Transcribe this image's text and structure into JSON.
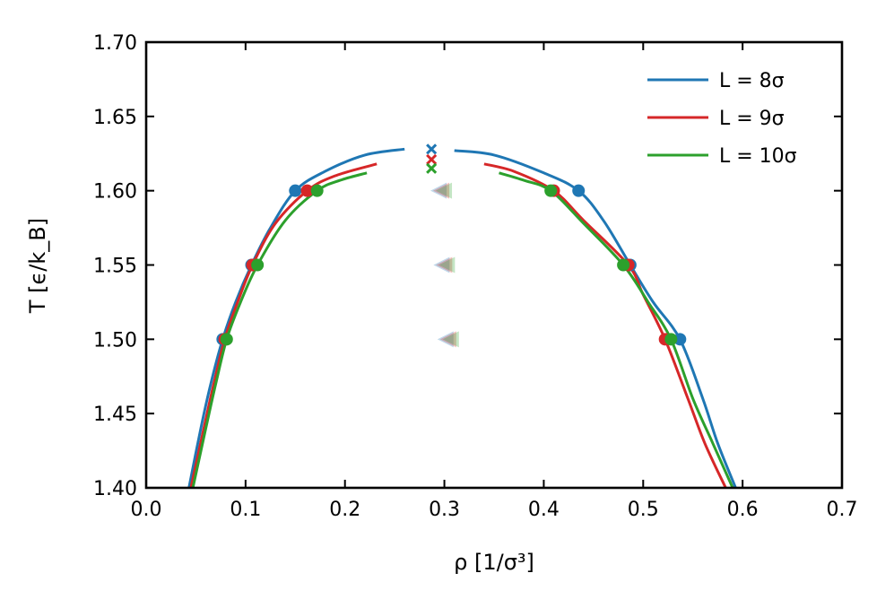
{
  "chart_data": {
    "type": "line",
    "title": "",
    "xlabel": "ρ [1/σ³]",
    "ylabel": "T [ϵ/k_B]",
    "xlim": [
      0.0,
      0.7
    ],
    "ylim": [
      1.4,
      1.7
    ],
    "xticks": [
      "0.0",
      "0.1",
      "0.2",
      "0.3",
      "0.4",
      "0.5",
      "0.6",
      "0.7"
    ],
    "yticks": [
      "1.40",
      "1.45",
      "1.50",
      "1.55",
      "1.60",
      "1.65",
      "1.70"
    ],
    "grid": false,
    "legend_position": "top-right",
    "series": [
      {
        "name": "L = 8σ",
        "color": "#1f77b4",
        "curve_left": [
          [
            0.043,
            1.4
          ],
          [
            0.055,
            1.44
          ],
          [
            0.065,
            1.47
          ],
          [
            0.077,
            1.5
          ],
          [
            0.09,
            1.525
          ],
          [
            0.106,
            1.55
          ],
          [
            0.125,
            1.575
          ],
          [
            0.15,
            1.6
          ],
          [
            0.18,
            1.613
          ],
          [
            0.22,
            1.624
          ],
          [
            0.26,
            1.628
          ]
        ],
        "curve_right": [
          [
            0.31,
            1.627
          ],
          [
            0.35,
            1.624
          ],
          [
            0.4,
            1.612
          ],
          [
            0.435,
            1.6
          ],
          [
            0.46,
            1.58
          ],
          [
            0.487,
            1.55
          ],
          [
            0.51,
            1.525
          ],
          [
            0.537,
            1.5
          ],
          [
            0.56,
            1.46
          ],
          [
            0.575,
            1.43
          ],
          [
            0.593,
            1.4
          ]
        ],
        "points": [
          [
            0.077,
            1.5
          ],
          [
            0.106,
            1.55
          ],
          [
            0.15,
            1.6
          ],
          [
            0.435,
            1.6
          ],
          [
            0.487,
            1.55
          ],
          [
            0.537,
            1.5
          ]
        ],
        "critical_point": [
          0.287,
          1.628
        ]
      },
      {
        "name": "L = 9σ",
        "color": "#d62728",
        "curve_left": [
          [
            0.045,
            1.4
          ],
          [
            0.058,
            1.44
          ],
          [
            0.068,
            1.47
          ],
          [
            0.079,
            1.5
          ],
          [
            0.092,
            1.525
          ],
          [
            0.107,
            1.55
          ],
          [
            0.13,
            1.578
          ],
          [
            0.162,
            1.6
          ],
          [
            0.19,
            1.61
          ],
          [
            0.232,
            1.618
          ]
        ],
        "curve_right": [
          [
            0.34,
            1.618
          ],
          [
            0.37,
            1.613
          ],
          [
            0.41,
            1.6
          ],
          [
            0.44,
            1.58
          ],
          [
            0.485,
            1.55
          ],
          [
            0.5,
            1.53
          ],
          [
            0.522,
            1.5
          ],
          [
            0.545,
            1.46
          ],
          [
            0.562,
            1.43
          ],
          [
            0.583,
            1.4
          ]
        ],
        "points": [
          [
            0.079,
            1.5
          ],
          [
            0.107,
            1.55
          ],
          [
            0.162,
            1.6
          ],
          [
            0.41,
            1.6
          ],
          [
            0.485,
            1.55
          ],
          [
            0.522,
            1.5
          ]
        ],
        "critical_point": [
          0.287,
          1.621
        ]
      },
      {
        "name": "L = 10σ",
        "color": "#2ca02c",
        "curve_left": [
          [
            0.047,
            1.4
          ],
          [
            0.06,
            1.44
          ],
          [
            0.07,
            1.47
          ],
          [
            0.081,
            1.5
          ],
          [
            0.095,
            1.525
          ],
          [
            0.112,
            1.55
          ],
          [
            0.14,
            1.58
          ],
          [
            0.172,
            1.6
          ],
          [
            0.195,
            1.607
          ],
          [
            0.222,
            1.612
          ]
        ],
        "curve_right": [
          [
            0.355,
            1.612
          ],
          [
            0.38,
            1.607
          ],
          [
            0.407,
            1.6
          ],
          [
            0.44,
            1.578
          ],
          [
            0.48,
            1.55
          ],
          [
            0.505,
            1.525
          ],
          [
            0.528,
            1.5
          ],
          [
            0.55,
            1.46
          ],
          [
            0.57,
            1.43
          ],
          [
            0.59,
            1.4
          ]
        ],
        "points": [
          [
            0.081,
            1.5
          ],
          [
            0.112,
            1.55
          ],
          [
            0.172,
            1.6
          ],
          [
            0.407,
            1.6
          ],
          [
            0.48,
            1.55
          ],
          [
            0.528,
            1.5
          ]
        ],
        "critical_point": [
          0.287,
          1.615
        ]
      }
    ],
    "rectilinear_midpoints": [
      [
        0.295,
        1.6
      ],
      [
        0.298,
        1.55
      ],
      [
        0.302,
        1.5
      ]
    ]
  }
}
